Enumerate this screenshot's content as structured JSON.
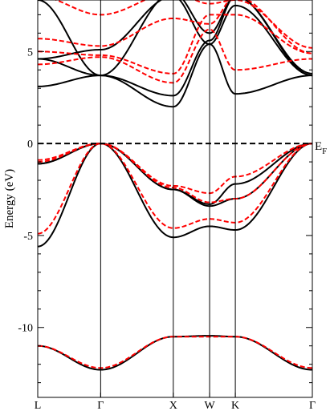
{
  "chart_data": {
    "type": "line",
    "title": "",
    "xlabel": "",
    "ylabel": "Energy (eV)",
    "ylim": [
      -13.8,
      7.8
    ],
    "y_ticks": [
      {
        "value": 5,
        "label": "5"
      },
      {
        "value": 0,
        "label": "0"
      },
      {
        "value": -5,
        "label": "-5"
      },
      {
        "value": -10,
        "label": "-10"
      }
    ],
    "x_ticks": [
      {
        "value": 0,
        "label": "L"
      },
      {
        "value": 0.866,
        "label": "Γ"
      },
      {
        "value": 1.866,
        "label": "X"
      },
      {
        "value": 2.366,
        "label": "W"
      },
      {
        "value": 2.72,
        "label": "K"
      },
      {
        "value": 3.78,
        "label": "Γ"
      }
    ],
    "fermi_level": {
      "value": 0,
      "label_main": "E",
      "label_sub": "F",
      "style": "dashed"
    },
    "legend": "none",
    "grid": false,
    "x": [
      0,
      0.866,
      1.866,
      2.366,
      2.72,
      3.78
    ],
    "series": [
      {
        "style": "solid",
        "color": "#000000",
        "values": [
          -11.0,
          -12.3,
          -10.5,
          -10.45,
          -10.5,
          -12.3
        ]
      },
      {
        "style": "solid",
        "color": "#000000",
        "values": [
          -5.6,
          0.0,
          -5.1,
          -4.5,
          -4.7,
          0.0
        ]
      },
      {
        "style": "solid",
        "color": "#000000",
        "values": [
          -1.1,
          0.0,
          -2.5,
          -3.4,
          -3.0,
          0.0
        ]
      },
      {
        "style": "solid",
        "color": "#000000",
        "values": [
          -1.1,
          0.0,
          -2.5,
          -3.3,
          -2.2,
          0.0
        ]
      },
      {
        "style": "solid",
        "color": "#000000",
        "values": [
          3.1,
          3.7,
          2.0,
          5.4,
          2.7,
          3.7
        ]
      },
      {
        "style": "solid",
        "color": "#000000",
        "values": [
          4.6,
          3.7,
          2.6,
          5.6,
          8.0,
          3.7
        ]
      },
      {
        "style": "solid",
        "color": "#000000",
        "values": [
          4.6,
          5.1,
          8.0,
          5.4,
          7.5,
          3.7
        ]
      },
      {
        "style": "solid",
        "color": "#000000",
        "values": [
          7.8,
          3.7,
          8.2,
          6.0,
          8.0,
          3.8
        ]
      },
      {
        "style": "dashed",
        "color": "#ff0000",
        "values": [
          -11.0,
          -12.2,
          -10.5,
          -10.5,
          -10.5,
          -12.2
        ]
      },
      {
        "style": "dashed",
        "color": "#ff0000",
        "values": [
          -4.9,
          0.0,
          -4.6,
          -4.1,
          -4.3,
          0.0
        ]
      },
      {
        "style": "dashed",
        "color": "#ff0000",
        "values": [
          -1.0,
          0.0,
          -2.4,
          -3.2,
          -3.0,
          0.0
        ]
      },
      {
        "style": "dashed",
        "color": "#ff0000",
        "values": [
          -0.9,
          0.0,
          -2.3,
          -2.7,
          -1.8,
          0.0
        ]
      },
      {
        "style": "dashed",
        "color": "#ff0000",
        "values": [
          4.3,
          4.7,
          3.3,
          6.2,
          4.0,
          4.6
        ]
      },
      {
        "style": "dashed",
        "color": "#ff0000",
        "values": [
          5.0,
          4.8,
          3.8,
          7.0,
          7.0,
          4.9
        ]
      },
      {
        "style": "dashed",
        "color": "#ff0000",
        "values": [
          5.7,
          5.3,
          6.8,
          6.5,
          8.0,
          4.9
        ]
      },
      {
        "style": "dashed",
        "color": "#ff0000",
        "values": [
          8.0,
          7.0,
          8.2,
          7.6,
          7.8,
          5.2
        ]
      }
    ]
  }
}
